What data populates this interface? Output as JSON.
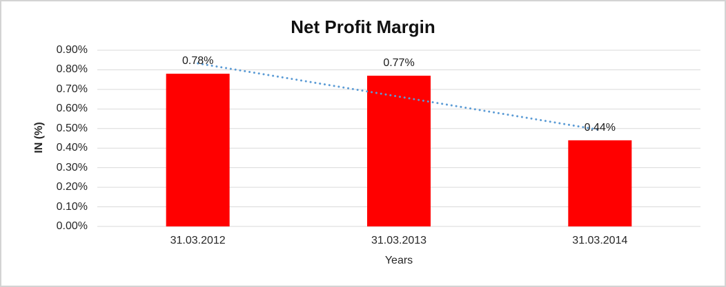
{
  "window": {
    "background": "#ffffff",
    "border_color": "#d3d3d3"
  },
  "chart_data": {
    "type": "bar",
    "title": "Net Profit Margin",
    "categories": [
      "31.03.2012",
      "31.03.2013",
      "31.03.2014"
    ],
    "series": [
      {
        "name": "Net Profit Margin",
        "values": [
          0.78,
          0.77,
          0.44
        ]
      }
    ],
    "data_labels": [
      "0.78%",
      "0.77%",
      "0.44%"
    ],
    "xlabel": "Years",
    "ylabel": "IN (%)",
    "ylim": [
      0.0,
      0.9
    ],
    "ytick_step": 0.1,
    "ytick_labels_top_to_bottom": [
      "0.90%",
      "0.80%",
      "0.70%",
      "0.60%",
      "0.50%",
      "0.40%",
      "0.30%",
      "0.20%",
      "0.10%",
      "0.00%"
    ],
    "grid": true,
    "legend": "none",
    "bar_color": "#FF0000",
    "gridline_color": "#D9D9D9",
    "text_color": "#262626",
    "trendline": {
      "type": "linear",
      "style": "dotted",
      "color": "#5B9BD5",
      "fit_values": [
        0.833,
        0.663,
        0.493
      ]
    }
  }
}
